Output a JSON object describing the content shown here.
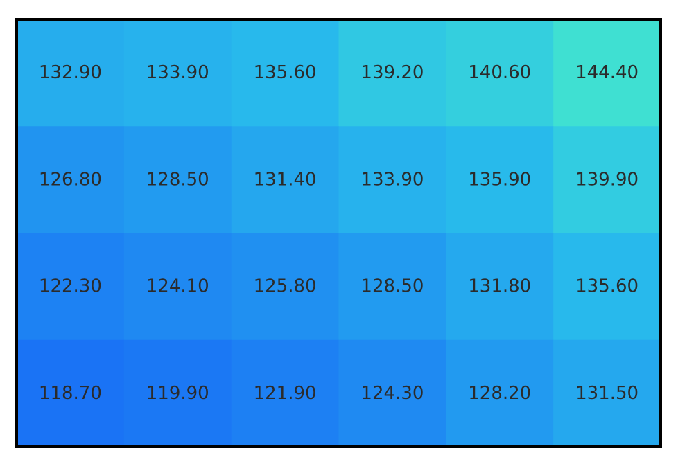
{
  "chart_data": {
    "type": "heatmap",
    "title": "",
    "xlabel": "",
    "ylabel": "",
    "rows": 4,
    "cols": 6,
    "values": [
      [
        132.9,
        133.9,
        135.6,
        139.2,
        140.6,
        144.4
      ],
      [
        126.8,
        128.5,
        131.4,
        133.9,
        135.9,
        139.9
      ],
      [
        122.3,
        124.1,
        125.8,
        128.5,
        131.8,
        135.6
      ],
      [
        118.7,
        119.9,
        121.9,
        124.3,
        128.2,
        131.5
      ]
    ],
    "value_format_decimals": 2,
    "color_range": [
      118.7,
      144.4
    ],
    "color_low": "#1a73f5",
    "color_mid": "#29bdeb",
    "color_high": "#3fe0d2",
    "text_color": "#2b2b2b",
    "border_color": "#000000",
    "legend": "none",
    "grid": false
  }
}
